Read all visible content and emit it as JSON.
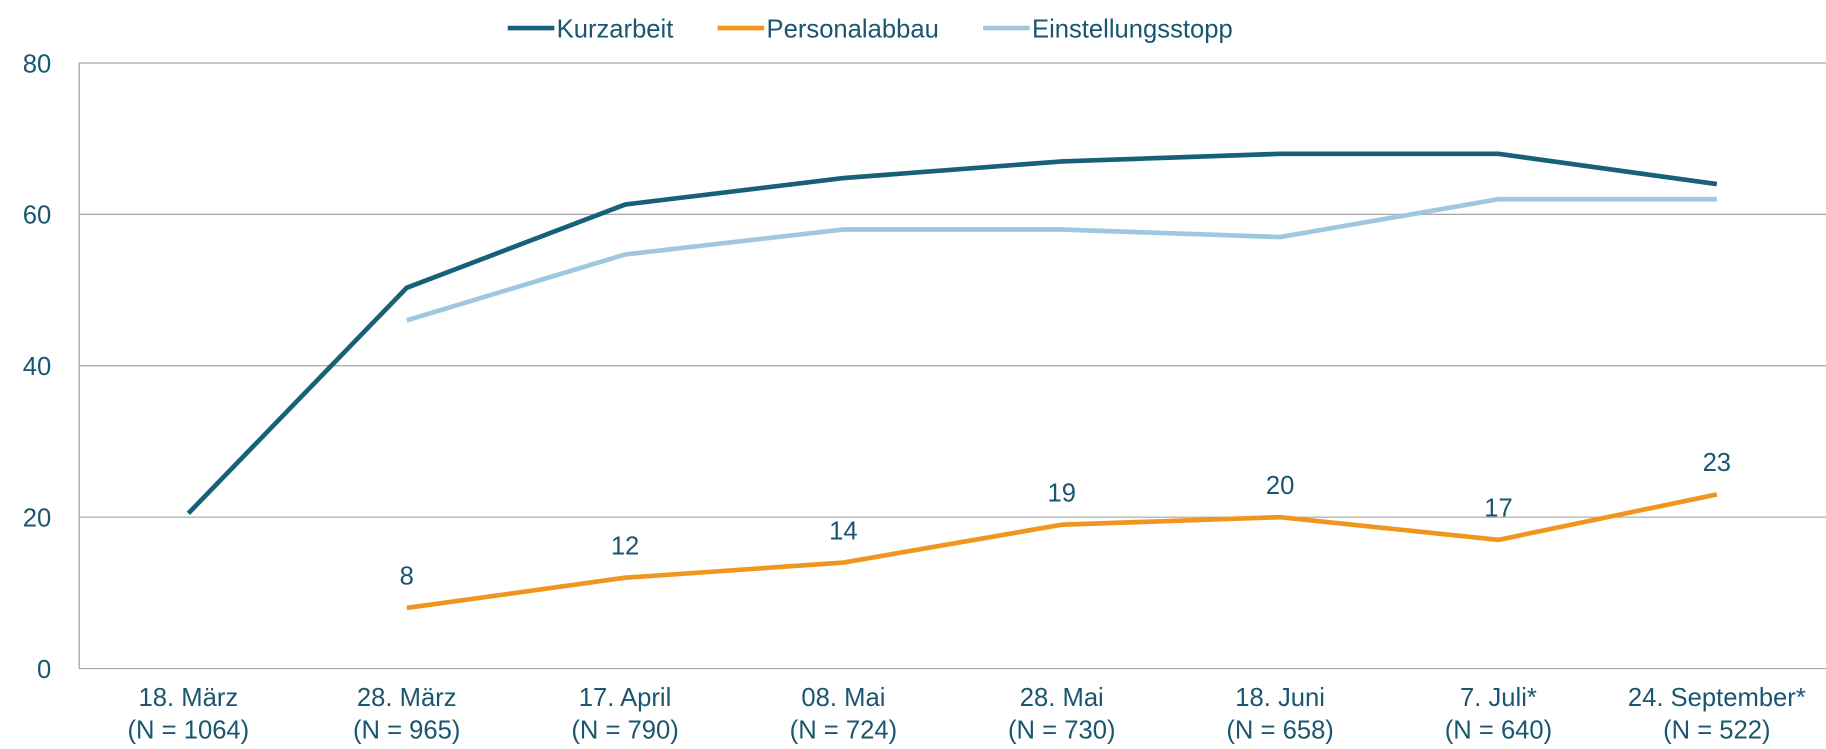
{
  "chart_data": {
    "type": "line",
    "categories": [
      [
        "18. März",
        "(N = 1064)"
      ],
      [
        "28. März",
        "(N = 965)"
      ],
      [
        "17. April",
        "(N = 790)"
      ],
      [
        "08. Mai",
        "(N = 724)"
      ],
      [
        "28. Mai",
        "(N = 730)"
      ],
      [
        "18. Juni",
        "(N = 658)"
      ],
      [
        "7. Juli*",
        "(N = 640)"
      ],
      [
        "24. September*",
        "(N = 522)"
      ]
    ],
    "series": [
      {
        "name": "Kurzarbeit",
        "color": "#16607a",
        "values": [
          20.5,
          50.3,
          61.3,
          64.8,
          67,
          68,
          68,
          64
        ]
      },
      {
        "name": "Personalabbau",
        "color": "#f0961e",
        "values": [
          null,
          8,
          12,
          14,
          19,
          20,
          17,
          23
        ],
        "value_labels": [
          null,
          "8",
          "12",
          "14",
          "19",
          "20",
          "17",
          "23"
        ]
      },
      {
        "name": "Einstellungsstopp",
        "color": "#9fc8e0",
        "values": [
          null,
          46,
          54.7,
          58,
          58,
          57,
          62,
          62
        ]
      }
    ],
    "ylim": [
      0,
      80
    ],
    "yticks": [
      0,
      20,
      40,
      60,
      80
    ],
    "grid": true,
    "legend": "top"
  }
}
